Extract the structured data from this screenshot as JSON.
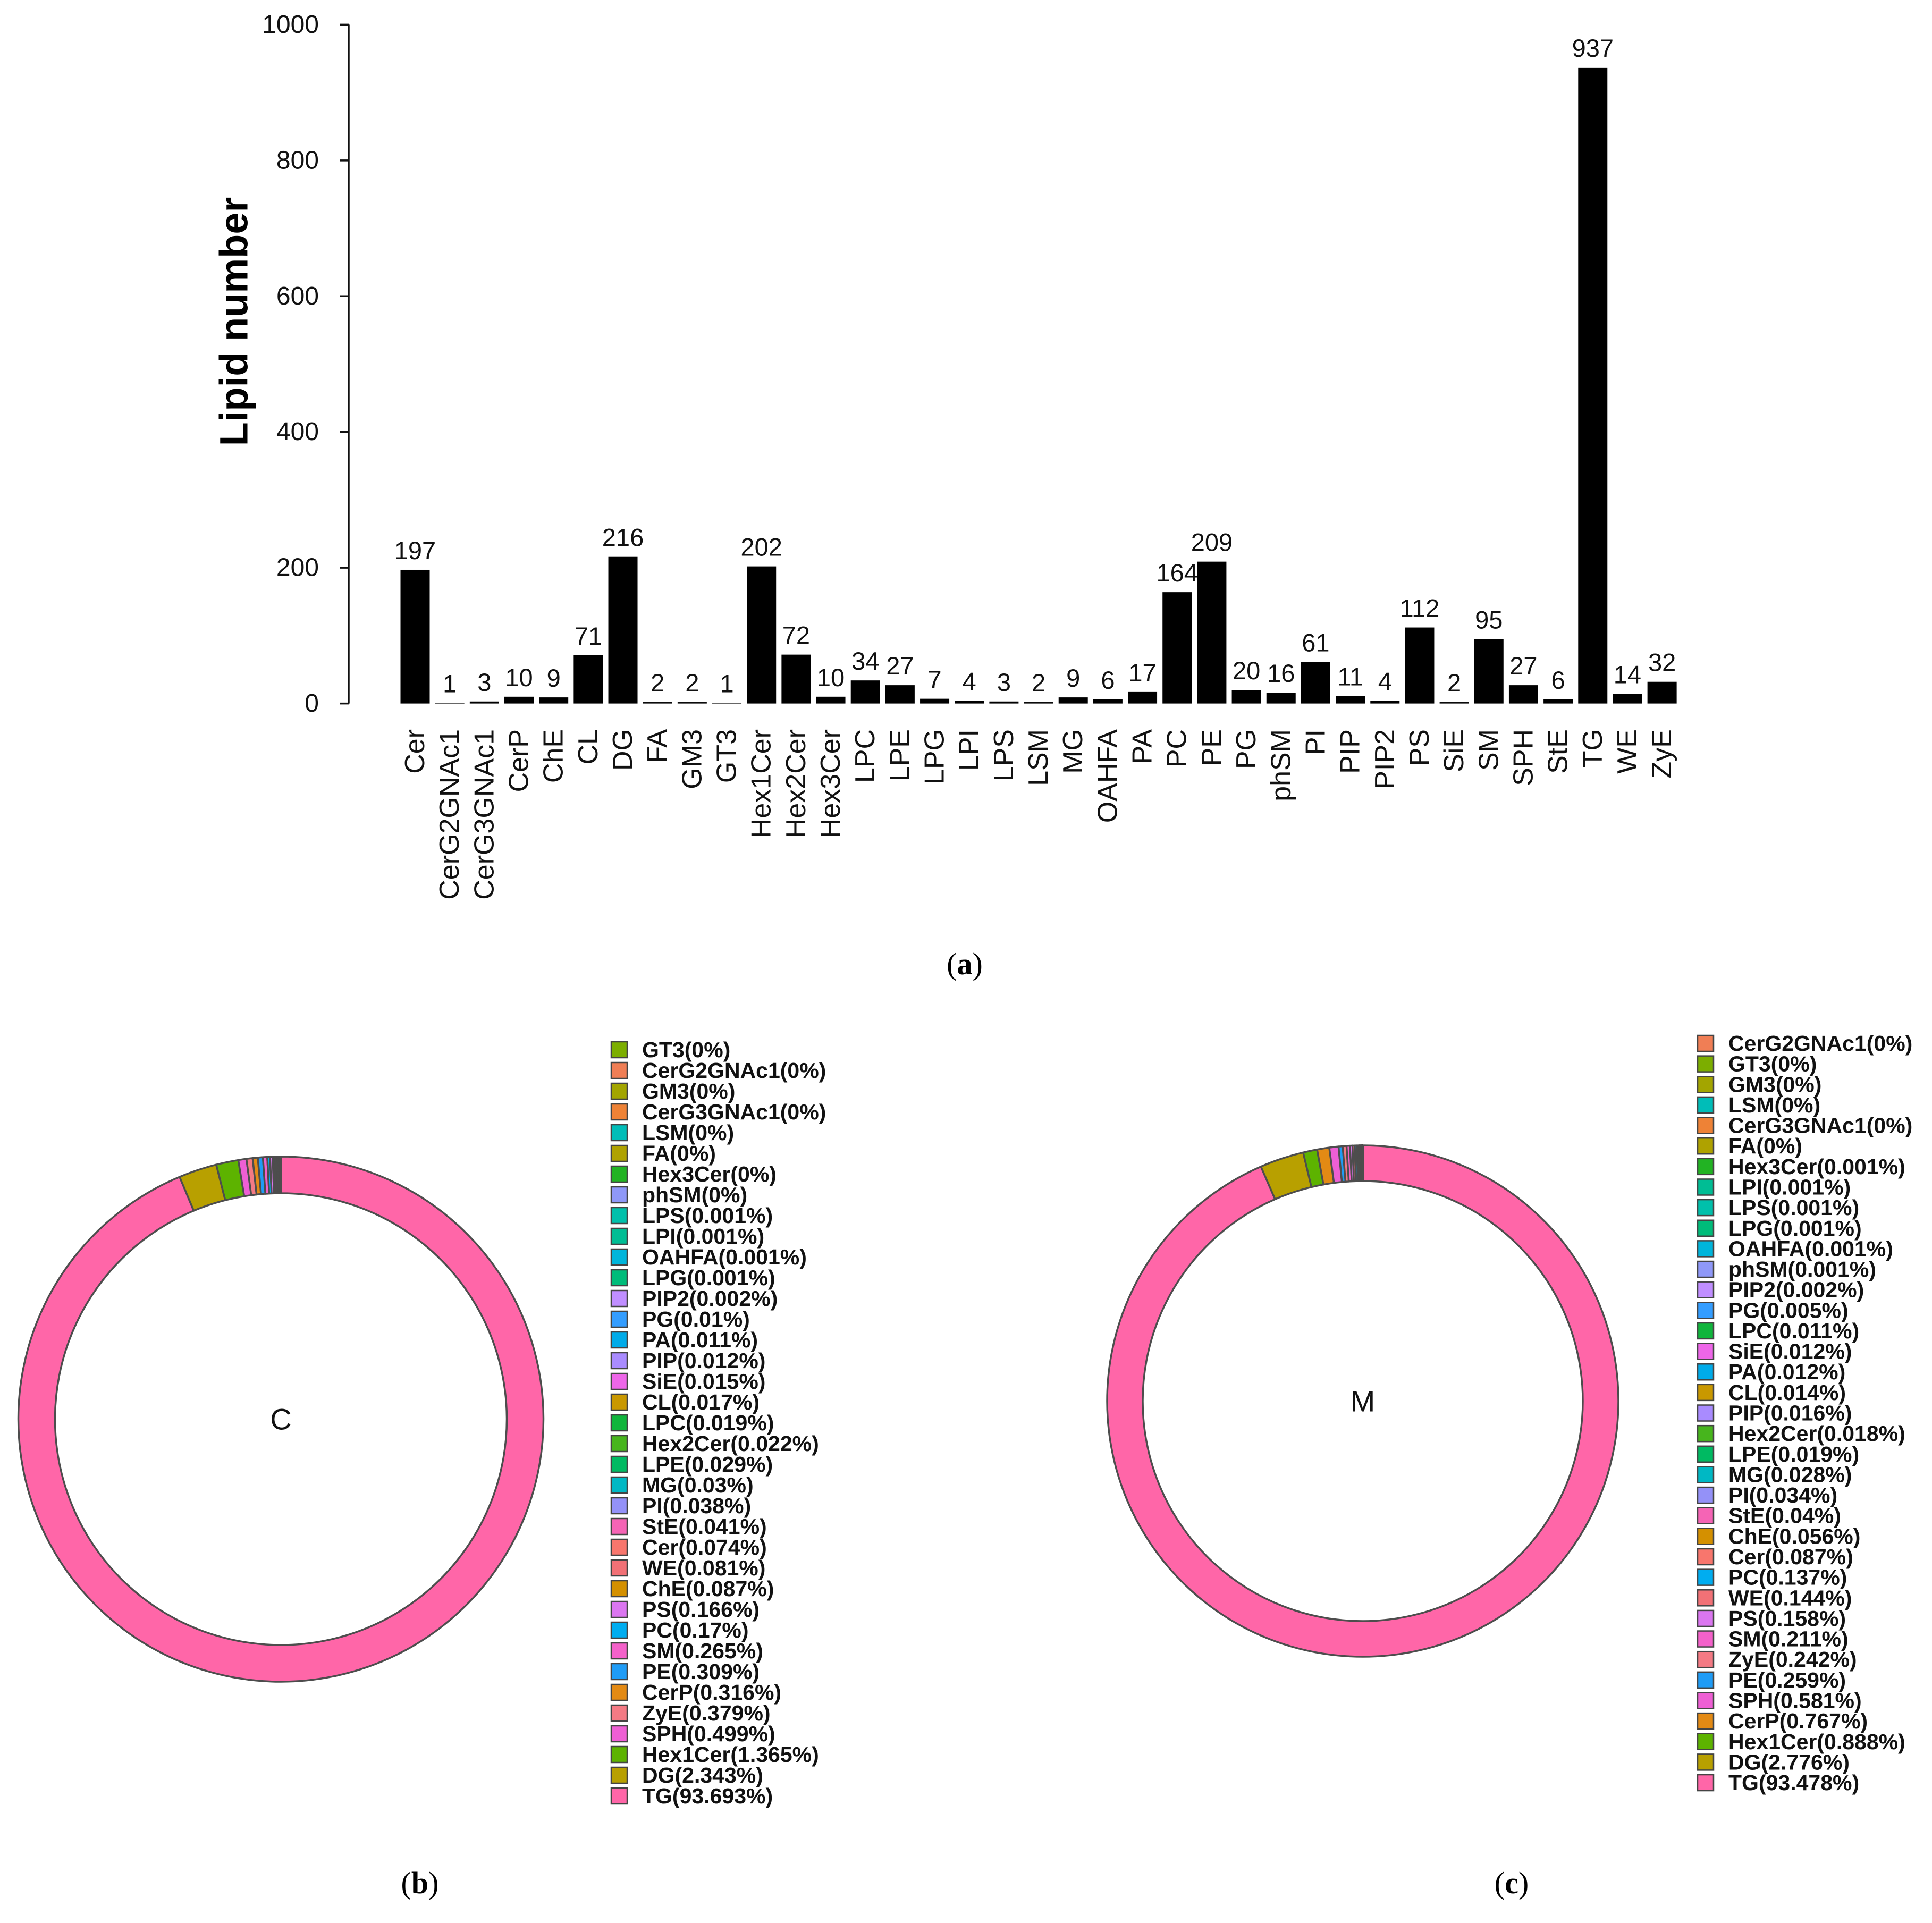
{
  "chart_data": [
    {
      "type": "bar",
      "caption": "(a)",
      "ylabel": "Lipid number",
      "ylim": [
        0,
        1000
      ],
      "yticks": [
        0,
        200,
        400,
        600,
        800,
        1000
      ],
      "categories": [
        "Cer",
        "CerG2GNAc1",
        "CerG3GNAc1",
        "CerP",
        "ChE",
        "CL",
        "DG",
        "FA",
        "GM3",
        "GT3",
        "Hex1Cer",
        "Hex2Cer",
        "Hex3Cer",
        "LPC",
        "LPE",
        "LPG",
        "LPI",
        "LPS",
        "LSM",
        "MG",
        "OAHFA",
        "PA",
        "PC",
        "PE",
        "PG",
        "phSM",
        "PI",
        "PIP",
        "PIP2",
        "PS",
        "SiE",
        "SM",
        "SPH",
        "StE",
        "TG",
        "WE",
        "ZyE"
      ],
      "values": [
        197,
        1,
        3,
        10,
        9,
        71,
        216,
        2,
        2,
        1,
        202,
        72,
        10,
        34,
        27,
        7,
        4,
        3,
        2,
        9,
        6,
        17,
        164,
        209,
        20,
        16,
        61,
        11,
        4,
        112,
        2,
        95,
        27,
        6,
        937,
        14,
        32
      ],
      "bar_color": "#000000",
      "data_labels": true
    },
    {
      "type": "pie",
      "caption": "(b)",
      "center_label": "C",
      "stroke_color": "#4d4d4d",
      "slices": [
        {
          "label": "GT3(0%)",
          "percent": 0,
          "color": "#7CAE00"
        },
        {
          "label": "CerG2GNAc1(0%)",
          "percent": 0,
          "color": "#F07E55"
        },
        {
          "label": "GM3(0%)",
          "percent": 0,
          "color": "#A3A500"
        },
        {
          "label": "CerG3GNAc1(0%)",
          "percent": 0,
          "color": "#EE8236"
        },
        {
          "label": "LSM(0%)",
          "percent": 0,
          "color": "#00BDB8"
        },
        {
          "label": "FA(0%)",
          "percent": 0,
          "color": "#AFA200"
        },
        {
          "label": "Hex3Cer(0%)",
          "percent": 0,
          "color": "#22B323"
        },
        {
          "label": "phSM(0%)",
          "percent": 0,
          "color": "#8F98F8"
        },
        {
          "label": "LPS(0.001%)",
          "percent": 0.001,
          "color": "#00C0AB"
        },
        {
          "label": "LPI(0.001%)",
          "percent": 0.001,
          "color": "#00BD94"
        },
        {
          "label": "OAHFA(0.001%)",
          "percent": 0.001,
          "color": "#00B5DB"
        },
        {
          "label": "LPG(0.001%)",
          "percent": 0.001,
          "color": "#00BC7A"
        },
        {
          "label": "PIP2(0.002%)",
          "percent": 0.002,
          "color": "#C08EFF"
        },
        {
          "label": "PG(0.01%)",
          "percent": 0.01,
          "color": "#339DFF"
        },
        {
          "label": "PA(0.011%)",
          "percent": 0.011,
          "color": "#00ABE9"
        },
        {
          "label": "PIP(0.012%)",
          "percent": 0.012,
          "color": "#A98BFF"
        },
        {
          "label": "SiE(0.015%)",
          "percent": 0.015,
          "color": "#ED66E8"
        },
        {
          "label": "CL(0.017%)",
          "percent": 0.017,
          "color": "#C99800"
        },
        {
          "label": "LPC(0.019%)",
          "percent": 0.019,
          "color": "#10B53C"
        },
        {
          "label": "Hex2Cer(0.022%)",
          "percent": 0.022,
          "color": "#47B51D"
        },
        {
          "label": "LPE(0.029%)",
          "percent": 0.029,
          "color": "#00BA62"
        },
        {
          "label": "MG(0.03%)",
          "percent": 0.03,
          "color": "#00B8C4"
        },
        {
          "label": "PI(0.038%)",
          "percent": 0.038,
          "color": "#9491F8"
        },
        {
          "label": "StE(0.041%)",
          "percent": 0.041,
          "color": "#F564B5"
        },
        {
          "label": "Cer(0.074%)",
          "percent": 0.074,
          "color": "#F8766D"
        },
        {
          "label": "WE(0.081%)",
          "percent": 0.081,
          "color": "#F27176"
        },
        {
          "label": "ChE(0.087%)",
          "percent": 0.087,
          "color": "#D49000"
        },
        {
          "label": "PS(0.166%)",
          "percent": 0.166,
          "color": "#DB76F0"
        },
        {
          "label": "PC(0.17%)",
          "percent": 0.17,
          "color": "#00ADF0"
        },
        {
          "label": "SM(0.265%)",
          "percent": 0.265,
          "color": "#F461CA"
        },
        {
          "label": "PE(0.309%)",
          "percent": 0.309,
          "color": "#1F9CF6"
        },
        {
          "label": "CerP(0.316%)",
          "percent": 0.316,
          "color": "#E38A14"
        },
        {
          "label": "ZyE(0.379%)",
          "percent": 0.379,
          "color": "#F47A84"
        },
        {
          "label": "SPH(0.499%)",
          "percent": 0.499,
          "color": "#EE5FD4"
        },
        {
          "label": "Hex1Cer(1.365%)",
          "percent": 1.365,
          "color": "#5DB300"
        },
        {
          "label": "DG(2.343%)",
          "percent": 2.343,
          "color": "#B8A000"
        },
        {
          "label": "TG(93.693%)",
          "percent": 93.693,
          "color": "#FF66A8"
        }
      ]
    },
    {
      "type": "pie",
      "caption": "(c)",
      "center_label": "M",
      "stroke_color": "#4d4d4d",
      "slices": [
        {
          "label": "CerG2GNAc1(0%)",
          "percent": 0,
          "color": "#F07E55"
        },
        {
          "label": "GT3(0%)",
          "percent": 0,
          "color": "#7CAE00"
        },
        {
          "label": "GM3(0%)",
          "percent": 0,
          "color": "#A3A500"
        },
        {
          "label": "LSM(0%)",
          "percent": 0,
          "color": "#00BDB8"
        },
        {
          "label": "CerG3GNAc1(0%)",
          "percent": 0,
          "color": "#EE8236"
        },
        {
          "label": "FA(0%)",
          "percent": 0,
          "color": "#AFA200"
        },
        {
          "label": "Hex3Cer(0.001%)",
          "percent": 0.001,
          "color": "#22B323"
        },
        {
          "label": "LPI(0.001%)",
          "percent": 0.001,
          "color": "#00BD94"
        },
        {
          "label": "LPS(0.001%)",
          "percent": 0.001,
          "color": "#00C0AB"
        },
        {
          "label": "LPG(0.001%)",
          "percent": 0.001,
          "color": "#00BC7A"
        },
        {
          "label": "OAHFA(0.001%)",
          "percent": 0.001,
          "color": "#00B5DB"
        },
        {
          "label": "phSM(0.001%)",
          "percent": 0.001,
          "color": "#8F98F8"
        },
        {
          "label": "PIP2(0.002%)",
          "percent": 0.002,
          "color": "#C08EFF"
        },
        {
          "label": "PG(0.005%)",
          "percent": 0.005,
          "color": "#339DFF"
        },
        {
          "label": "LPC(0.011%)",
          "percent": 0.011,
          "color": "#10B53C"
        },
        {
          "label": "SiE(0.012%)",
          "percent": 0.012,
          "color": "#ED66E8"
        },
        {
          "label": "PA(0.012%)",
          "percent": 0.012,
          "color": "#00ABE9"
        },
        {
          "label": "CL(0.014%)",
          "percent": 0.014,
          "color": "#C99800"
        },
        {
          "label": "PIP(0.016%)",
          "percent": 0.016,
          "color": "#A98BFF"
        },
        {
          "label": "Hex2Cer(0.018%)",
          "percent": 0.018,
          "color": "#47B51D"
        },
        {
          "label": "LPE(0.019%)",
          "percent": 0.019,
          "color": "#00BA62"
        },
        {
          "label": "MG(0.028%)",
          "percent": 0.028,
          "color": "#00B8C4"
        },
        {
          "label": "PI(0.034%)",
          "percent": 0.034,
          "color": "#9491F8"
        },
        {
          "label": "StE(0.04%)",
          "percent": 0.04,
          "color": "#F564B5"
        },
        {
          "label": "ChE(0.056%)",
          "percent": 0.056,
          "color": "#D49000"
        },
        {
          "label": "Cer(0.087%)",
          "percent": 0.087,
          "color": "#F8766D"
        },
        {
          "label": "PC(0.137%)",
          "percent": 0.137,
          "color": "#00ADF0"
        },
        {
          "label": "WE(0.144%)",
          "percent": 0.144,
          "color": "#F27176"
        },
        {
          "label": "PS(0.158%)",
          "percent": 0.158,
          "color": "#DB76F0"
        },
        {
          "label": "SM(0.211%)",
          "percent": 0.211,
          "color": "#F461CA"
        },
        {
          "label": "ZyE(0.242%)",
          "percent": 0.242,
          "color": "#F47A84"
        },
        {
          "label": "PE(0.259%)",
          "percent": 0.259,
          "color": "#1F9CF6"
        },
        {
          "label": "SPH(0.581%)",
          "percent": 0.581,
          "color": "#EE5FD4"
        },
        {
          "label": "CerP(0.767%)",
          "percent": 0.767,
          "color": "#E38A14"
        },
        {
          "label": "Hex1Cer(0.888%)",
          "percent": 0.888,
          "color": "#5DB300"
        },
        {
          "label": "DG(2.776%)",
          "percent": 2.776,
          "color": "#B8A000"
        },
        {
          "label": "TG(93.478%)",
          "percent": 93.478,
          "color": "#FF66A8"
        }
      ]
    }
  ]
}
